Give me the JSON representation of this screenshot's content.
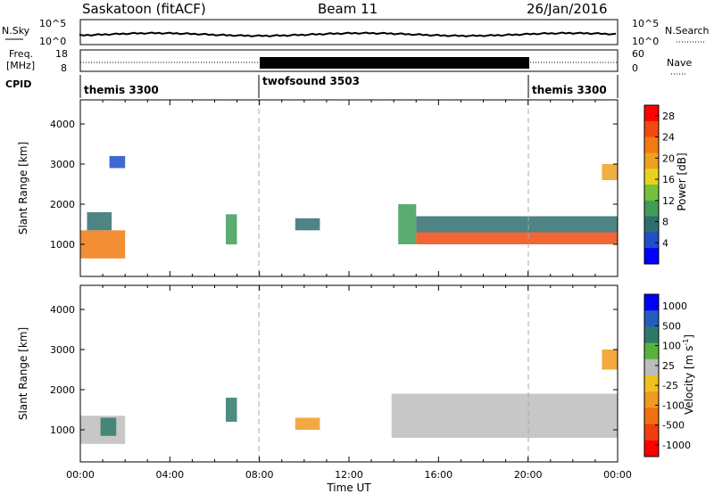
{
  "header": {
    "station": "Saskatoon (fitACF)",
    "beam": "Beam 11",
    "date": "26/Jan/2016"
  },
  "noise_panel": {
    "left_label": "N.Sky",
    "left_ticks": [
      "10^5",
      "10^0"
    ],
    "right_ticks": [
      "10^5",
      "10^0"
    ],
    "right_label": "N.Search"
  },
  "freq_panel": {
    "left_label_1": "Freq.",
    "left_label_2": "[MHz]",
    "left_ticks": [
      "18",
      "8"
    ],
    "right_ticks": [
      "60",
      "0"
    ],
    "right_label": "Nave"
  },
  "cpid_panel": {
    "label": "CPID",
    "segments": [
      "themis 3300",
      "twofsound 3503",
      "themis 3300"
    ]
  },
  "colors": {
    "scale_power": [
      "#0000ff",
      "#1e4fc8",
      "#2f6e6e",
      "#3e9e58",
      "#74c23c",
      "#e8d21e",
      "#f0a020",
      "#f27a10",
      "#f04a10",
      "#ff0000"
    ],
    "scale_velocity": [
      "#0000ff",
      "#245cc0",
      "#2e7a6a",
      "#5ab23e",
      "#bdbdbd",
      "#f0c020",
      "#f09a20",
      "#f27010",
      "#f03e10",
      "#ff0000"
    ],
    "dashed_line": "#aaaaaa"
  },
  "chart_data": [
    {
      "type": "heatmap",
      "title": "",
      "xlabel": "Time UT",
      "ylabel": "Slant Range [km]",
      "x_ticks": [
        "00:00",
        "04:00",
        "08:00",
        "12:00",
        "16:00",
        "20:00",
        "00:00"
      ],
      "y_ticks": [
        "1000",
        "2000",
        "3000",
        "4000"
      ],
      "xlim_hours": [
        0,
        24
      ],
      "ylim_km": [
        200,
        4600
      ],
      "colorbar": {
        "label": "Power [dB]",
        "ticks": [
          "4",
          "8",
          "12",
          "16",
          "20",
          "24",
          "28"
        ],
        "range": [
          0,
          30
        ]
      },
      "blobs": [
        {
          "t0": 0.0,
          "t1": 2.0,
          "r0": 650,
          "r1": 1350,
          "value": 22
        },
        {
          "t0": 0.3,
          "t1": 1.4,
          "r0": 1350,
          "r1": 1800,
          "value": 8
        },
        {
          "t0": 1.3,
          "t1": 2.0,
          "r0": 2900,
          "r1": 3200,
          "value": 4
        },
        {
          "t0": 6.5,
          "t1": 7.0,
          "r0": 1000,
          "r1": 1750,
          "value": 10
        },
        {
          "t0": 9.6,
          "t1": 10.7,
          "r0": 1350,
          "r1": 1650,
          "value": 6
        },
        {
          "t0": 14.2,
          "t1": 15.0,
          "r0": 1000,
          "r1": 2000,
          "value": 10
        },
        {
          "t0": 15.0,
          "t1": 24.0,
          "r0": 1000,
          "r1": 1300,
          "value": 24
        },
        {
          "t0": 15.0,
          "t1": 24.0,
          "r0": 1300,
          "r1": 1700,
          "value": 8
        },
        {
          "t0": 23.3,
          "t1": 24.0,
          "r0": 2600,
          "r1": 3000,
          "value": 18
        }
      ]
    },
    {
      "type": "heatmap",
      "title": "",
      "xlabel": "Time UT",
      "ylabel": "Slant Range [km]",
      "x_ticks": [
        "00:00",
        "04:00",
        "08:00",
        "12:00",
        "16:00",
        "20:00",
        "00:00"
      ],
      "y_ticks": [
        "1000",
        "2000",
        "3000",
        "4000"
      ],
      "xlim_hours": [
        0,
        24
      ],
      "ylim_km": [
        200,
        4600
      ],
      "colorbar": {
        "label": "Velocity [m s^-1]",
        "ticks": [
          "1000",
          "500",
          "100",
          "25",
          "-25",
          "-100",
          "-500",
          "-1000"
        ]
      },
      "blobs": [
        {
          "t0": 0.0,
          "t1": 2.0,
          "r0": 650,
          "r1": 1350,
          "value": 0
        },
        {
          "t0": 0.9,
          "t1": 1.6,
          "r0": 850,
          "r1": 1300,
          "value": 150
        },
        {
          "t0": 6.5,
          "t1": 7.0,
          "r0": 1200,
          "r1": 1800,
          "value": 300
        },
        {
          "t0": 9.6,
          "t1": 10.7,
          "r0": 1000,
          "r1": 1300,
          "value": -200
        },
        {
          "t0": 13.9,
          "t1": 24.0,
          "r0": 800,
          "r1": 1900,
          "value": 0
        },
        {
          "t0": 23.3,
          "t1": 24.0,
          "r0": 2500,
          "r1": 3000,
          "value": -300
        }
      ]
    }
  ]
}
